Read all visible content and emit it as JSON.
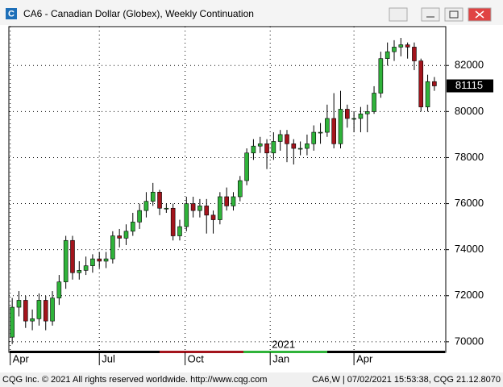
{
  "window_title": "CA6 - Canadian Dollar (Globex), Weekly Continuation",
  "chart_data": {
    "type": "candlestick",
    "open": [
      70200,
      71500,
      71800,
      70900,
      71000,
      71800,
      70900,
      71900,
      72600,
      74400,
      73000,
      73100,
      73300,
      73600,
      73500,
      73600,
      74600,
      74500,
      74800,
      75200,
      75700,
      76100,
      76500,
      75800,
      75800,
      74600,
      75000,
      76000,
      75700,
      75900,
      75500,
      75300,
      76300,
      75900,
      76300,
      77000,
      78200,
      78500,
      78600,
      78200,
      78700,
      79000,
      78600,
      78400,
      78400,
      78600,
      79100,
      79100,
      79700,
      78600,
      80100,
      79700,
      79700,
      79900,
      80000,
      80800,
      82300,
      82600,
      82800,
      82900,
      82800,
      82200,
      80200,
      81300
    ],
    "high": [
      71900,
      72200,
      72000,
      71400,
      72100,
      72000,
      72200,
      72900,
      74600,
      74600,
      73500,
      73700,
      73800,
      73900,
      73900,
      74800,
      74900,
      75100,
      75600,
      76000,
      76500,
      76900,
      76600,
      76000,
      76000,
      75300,
      76300,
      76300,
      76200,
      76200,
      75700,
      76500,
      76700,
      76500,
      77200,
      78400,
      78800,
      78900,
      78800,
      79100,
      79200,
      79200,
      78800,
      78700,
      79000,
      79400,
      79500,
      80300,
      80800,
      80900,
      80300,
      80000,
      80200,
      80300,
      81100,
      82600,
      83000,
      83100,
      83200,
      83000,
      83000,
      82300,
      81600,
      81500
    ],
    "low": [
      69900,
      71100,
      70600,
      70500,
      70700,
      70500,
      70700,
      71600,
      72300,
      72700,
      72700,
      72900,
      73000,
      73200,
      73200,
      73400,
      74100,
      74200,
      74600,
      74900,
      75400,
      75900,
      75500,
      75600,
      74400,
      74400,
      74800,
      75400,
      75400,
      74700,
      74700,
      75100,
      75700,
      75700,
      76100,
      76800,
      77900,
      78200,
      77500,
      77900,
      78300,
      77800,
      77700,
      78100,
      78100,
      78300,
      78600,
      78900,
      78400,
      78400,
      79300,
      79100,
      79100,
      79100,
      79900,
      80600,
      82000,
      82200,
      82400,
      82300,
      81800,
      80000,
      80000,
      80900
    ],
    "close": [
      71500,
      71800,
      70900,
      71000,
      71800,
      70900,
      71900,
      72600,
      74400,
      73000,
      73100,
      73300,
      73600,
      73500,
      73600,
      74600,
      74500,
      74800,
      75200,
      75700,
      76100,
      76500,
      75800,
      75800,
      74600,
      75000,
      76000,
      75700,
      75900,
      75500,
      75300,
      76300,
      75900,
      76300,
      77000,
      78200,
      78500,
      78600,
      78200,
      78700,
      79000,
      78600,
      78400,
      78400,
      78600,
      79100,
      79100,
      79700,
      78600,
      80100,
      79700,
      79700,
      79900,
      80000,
      80800,
      82300,
      82600,
      82800,
      82900,
      82800,
      82200,
      80200,
      81300,
      81115
    ],
    "up_color": "#2fb33a",
    "down_color": "#a3141c",
    "ylim": [
      69540,
      83690
    ],
    "yticks": [
      70000,
      72000,
      74000,
      76000,
      78000,
      80000,
      82000
    ],
    "xlim": [
      -0.5,
      64.7
    ],
    "xticks": [
      {
        "value": -0.3,
        "label": "Apr"
      },
      {
        "value": 13,
        "label": "Jul"
      },
      {
        "value": 25.8,
        "label": "Oct"
      },
      {
        "value": 38.5,
        "label": "Jan"
      },
      {
        "value": 51,
        "label": "Apr"
      }
    ],
    "year_label": "2021",
    "last_price": 81115,
    "grid": true
  },
  "status_left": "CQG Inc. © 2021 All rights reserved worldwide. http://www.cqg.com",
  "status_right": "CA6,W | 07/02/2021 15:53:38, CQG 21.12.8070"
}
